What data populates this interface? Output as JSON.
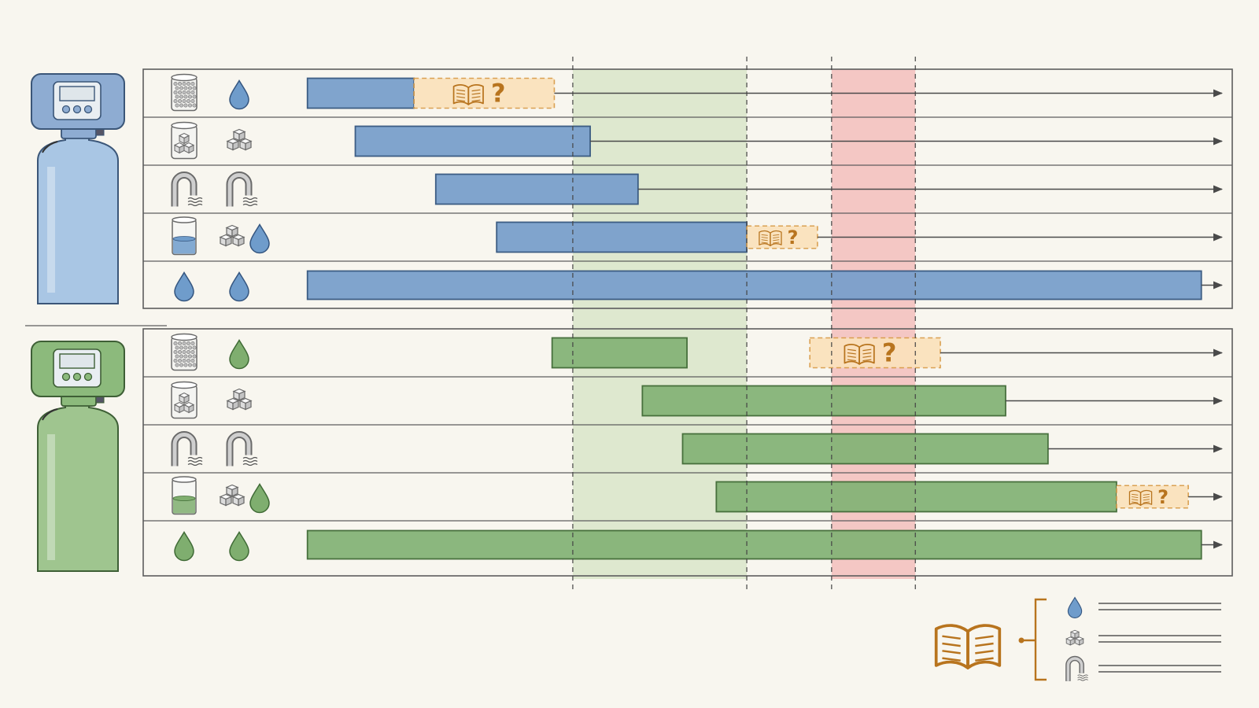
{
  "colors": {
    "background": "#f8f6ef",
    "blue_fill": "#7aa0cc",
    "blue_stroke": "#34557f",
    "green_fill": "#86b478",
    "green_stroke": "#3f6a35",
    "green_zone": "#c9dcb4",
    "red_zone": "#f0a0a0",
    "note_fill": "#fbe2bc",
    "note_stroke": "#d89a45",
    "note_ink": "#b8741e",
    "line": "#5d5d5d"
  },
  "zones": [
    {
      "name": "green-zone",
      "from": 0.382,
      "to": 0.542,
      "color": "#c9dcb4"
    },
    {
      "name": "red-zone",
      "from": 0.62,
      "to": 0.697,
      "color": "#f0a0a0"
    }
  ],
  "dividers": [
    0.382,
    0.542,
    0.62,
    0.697
  ],
  "groups": [
    {
      "name": "blue-softener",
      "theme": "blue",
      "rows": [
        {
          "icons": [
            "resin-container-icon",
            "water-drop-icon"
          ],
          "bar": [
            0.138,
            0.236
          ],
          "note": {
            "start": 0.236,
            "end": 0.365,
            "scale": 1.0
          }
        },
        {
          "icons": [
            "salt-container-icon",
            "salt-cubes-icon"
          ],
          "bar": [
            0.182,
            0.398
          ]
        },
        {
          "icons": [
            "pipe-icon",
            "pipe-icon"
          ],
          "bar": [
            0.256,
            0.442
          ]
        },
        {
          "icons": [
            "water-glass-icon",
            "salt-cubes-icon",
            "water-drop-icon"
          ],
          "bar": [
            0.312,
            0.542
          ],
          "note": {
            "start": 0.542,
            "end": 0.607,
            "scale": 0.75
          }
        },
        {
          "icons": [
            "water-drop-icon",
            "water-drop-icon"
          ],
          "bar": [
            0.138,
            0.96
          ]
        }
      ]
    },
    {
      "name": "green-softener",
      "theme": "green",
      "rows": [
        {
          "icons": [
            "resin-container-icon",
            "water-drop-icon"
          ],
          "bar": [
            0.363,
            0.487
          ],
          "note": {
            "start": 0.6,
            "end": 0.72,
            "scale": 1.0
          }
        },
        {
          "icons": [
            "salt-container-icon",
            "salt-cubes-icon"
          ],
          "bar": [
            0.446,
            0.78
          ]
        },
        {
          "icons": [
            "pipe-icon",
            "pipe-icon"
          ],
          "bar": [
            0.483,
            0.819
          ]
        },
        {
          "icons": [
            "water-glass-icon",
            "salt-cubes-icon",
            "water-drop-icon"
          ],
          "bar": [
            0.514,
            0.882
          ],
          "note": {
            "start": 0.882,
            "end": 0.948,
            "scale": 0.75
          }
        },
        {
          "icons": [
            "water-drop-icon",
            "water-drop-icon"
          ],
          "bar": [
            0.138,
            0.96
          ]
        }
      ]
    }
  ],
  "legend": {
    "icon": "open-book-icon",
    "items": [
      "water-drop-icon",
      "salt-cubes-icon",
      "pipe-icon"
    ]
  },
  "note": {
    "icon": "open-book-icon",
    "mark": "?"
  }
}
